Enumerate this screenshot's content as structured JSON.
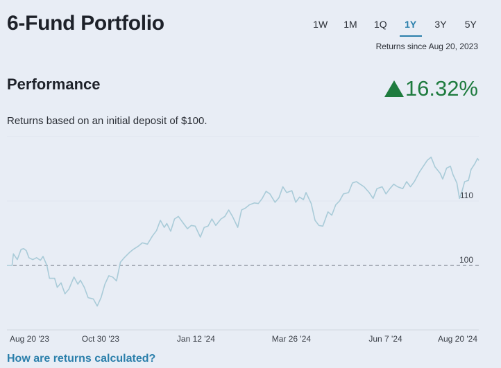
{
  "header": {
    "title": "6-Fund Portfolio"
  },
  "tabs": [
    {
      "label": "1W"
    },
    {
      "label": "1M"
    },
    {
      "label": "1Q"
    },
    {
      "label": "1Y",
      "active": true
    },
    {
      "label": "3Y"
    },
    {
      "label": "5Y"
    }
  ],
  "returns_since": "Returns since Aug 20, 2023",
  "performance": {
    "heading": "Performance",
    "return_pct": "16.32%",
    "direction": "up",
    "return_color": "#1e7b3e",
    "subtitle": "Returns based on an initial deposit of $100."
  },
  "link_label": "How are returns calculated?",
  "colors": {
    "accent": "#2a7fab",
    "line": "#a9cbd8",
    "background": "#e8edf5"
  },
  "chart_data": {
    "type": "line",
    "xlim": [
      "2023-08-20",
      "2024-08-20"
    ],
    "ylim": [
      90,
      120
    ],
    "grid": true,
    "reference_line": 100,
    "ytick_labels": [
      "100",
      "110"
    ],
    "ytick_values": [
      100,
      110
    ],
    "xtick_labels": [
      "Aug 20 '23",
      "Oct 30 '23",
      "Jan 12 '24",
      "Mar 26 '24",
      "Jun 7 '24",
      "Aug 20 '24"
    ],
    "xtick_dates": [
      "2023-08-20",
      "2023-10-30",
      "2024-01-12",
      "2024-03-26",
      "2024-06-07",
      "2024-08-20"
    ],
    "x": [
      "2023-08-20",
      "2023-08-24",
      "2023-08-25",
      "2023-08-28",
      "2023-08-31",
      "2023-09-02",
      "2023-09-04",
      "2023-09-06",
      "2023-09-09",
      "2023-09-12",
      "2023-09-15",
      "2023-09-17",
      "2023-09-20",
      "2023-09-22",
      "2023-09-26",
      "2023-09-28",
      "2023-10-01",
      "2023-10-04",
      "2023-10-07",
      "2023-10-11",
      "2023-10-14",
      "2023-10-16",
      "2023-10-19",
      "2023-10-22",
      "2023-10-26",
      "2023-10-29",
      "2023-11-01",
      "2023-11-04",
      "2023-11-07",
      "2023-11-10",
      "2023-11-13",
      "2023-11-16",
      "2023-11-19",
      "2023-11-23",
      "2023-11-26",
      "2023-11-30",
      "2023-12-03",
      "2023-12-07",
      "2023-12-11",
      "2023-12-14",
      "2023-12-17",
      "2023-12-20",
      "2023-12-22",
      "2023-12-25",
      "2023-12-28",
      "2023-12-31",
      "2024-01-04",
      "2024-01-07",
      "2024-01-10",
      "2024-01-13",
      "2024-01-17",
      "2024-01-20",
      "2024-01-23",
      "2024-01-26",
      "2024-01-29",
      "2024-02-02",
      "2024-02-05",
      "2024-02-08",
      "2024-02-11",
      "2024-02-15",
      "2024-02-18",
      "2024-02-21",
      "2024-02-24",
      "2024-02-28",
      "2024-03-02",
      "2024-03-05",
      "2024-03-08",
      "2024-03-11",
      "2024-03-15",
      "2024-03-18",
      "2024-03-21",
      "2024-03-24",
      "2024-03-28",
      "2024-03-31",
      "2024-04-03",
      "2024-04-06",
      "2024-04-08",
      "2024-04-12",
      "2024-04-15",
      "2024-04-18",
      "2024-04-21",
      "2024-04-25",
      "2024-04-28",
      "2024-05-01",
      "2024-05-04",
      "2024-05-07",
      "2024-05-11",
      "2024-05-14",
      "2024-05-17",
      "2024-05-20",
      "2024-05-23",
      "2024-05-27",
      "2024-05-30",
      "2024-06-02",
      "2024-06-06",
      "2024-06-09",
      "2024-06-12",
      "2024-06-15",
      "2024-06-18",
      "2024-06-22",
      "2024-06-25",
      "2024-06-28",
      "2024-07-01",
      "2024-07-05",
      "2024-07-08",
      "2024-07-11",
      "2024-07-14",
      "2024-07-17",
      "2024-07-21",
      "2024-07-23",
      "2024-07-26",
      "2024-07-29",
      "2024-07-31",
      "2024-08-03",
      "2024-08-05",
      "2024-08-07",
      "2024-08-09",
      "2024-08-12",
      "2024-08-14",
      "2024-08-17",
      "2024-08-19",
      "2024-08-20"
    ],
    "values": [
      100,
      100,
      101.8,
      100.9,
      102.5,
      102.6,
      102.3,
      101.2,
      100.9,
      101.2,
      100.8,
      101.4,
      100,
      98.0,
      98.0,
      96.6,
      97.3,
      95.6,
      96.3,
      98.2,
      97.1,
      97.7,
      96.6,
      95.0,
      94.8,
      93.7,
      95.0,
      97.1,
      98.4,
      98.2,
      97.6,
      100.5,
      101.2,
      102.0,
      102.5,
      103.0,
      103.5,
      103.3,
      104.6,
      105.4,
      107.0,
      105.9,
      106.5,
      105.3,
      107.2,
      107.6,
      106.5,
      105.7,
      106.2,
      106.1,
      104.4,
      105.9,
      106.1,
      107.2,
      106.2,
      107.2,
      107.6,
      108.6,
      107.6,
      105.9,
      108.6,
      108.9,
      109.4,
      109.7,
      109.6,
      110.4,
      111.5,
      111.1,
      109.8,
      110.5,
      112.2,
      111.3,
      111.6,
      109.8,
      110.6,
      110.2,
      111.3,
      109.6,
      107.0,
      106.2,
      106.1,
      108.3,
      107.8,
      109.4,
      110.0,
      111.1,
      111.3,
      112.8,
      113.0,
      112.6,
      112.2,
      111.3,
      110.4,
      111.9,
      112.2,
      111.1,
      111.9,
      112.6,
      112.2,
      111.9,
      113.0,
      112.2,
      113.0,
      114.5,
      115.4,
      116.3,
      116.8,
      115.3,
      114.3,
      113.4,
      115.1,
      115.4,
      114.1,
      112.8,
      110.4,
      111.5,
      113.0,
      113.2,
      114.9,
      115.8,
      116.6,
      116.3
    ]
  }
}
